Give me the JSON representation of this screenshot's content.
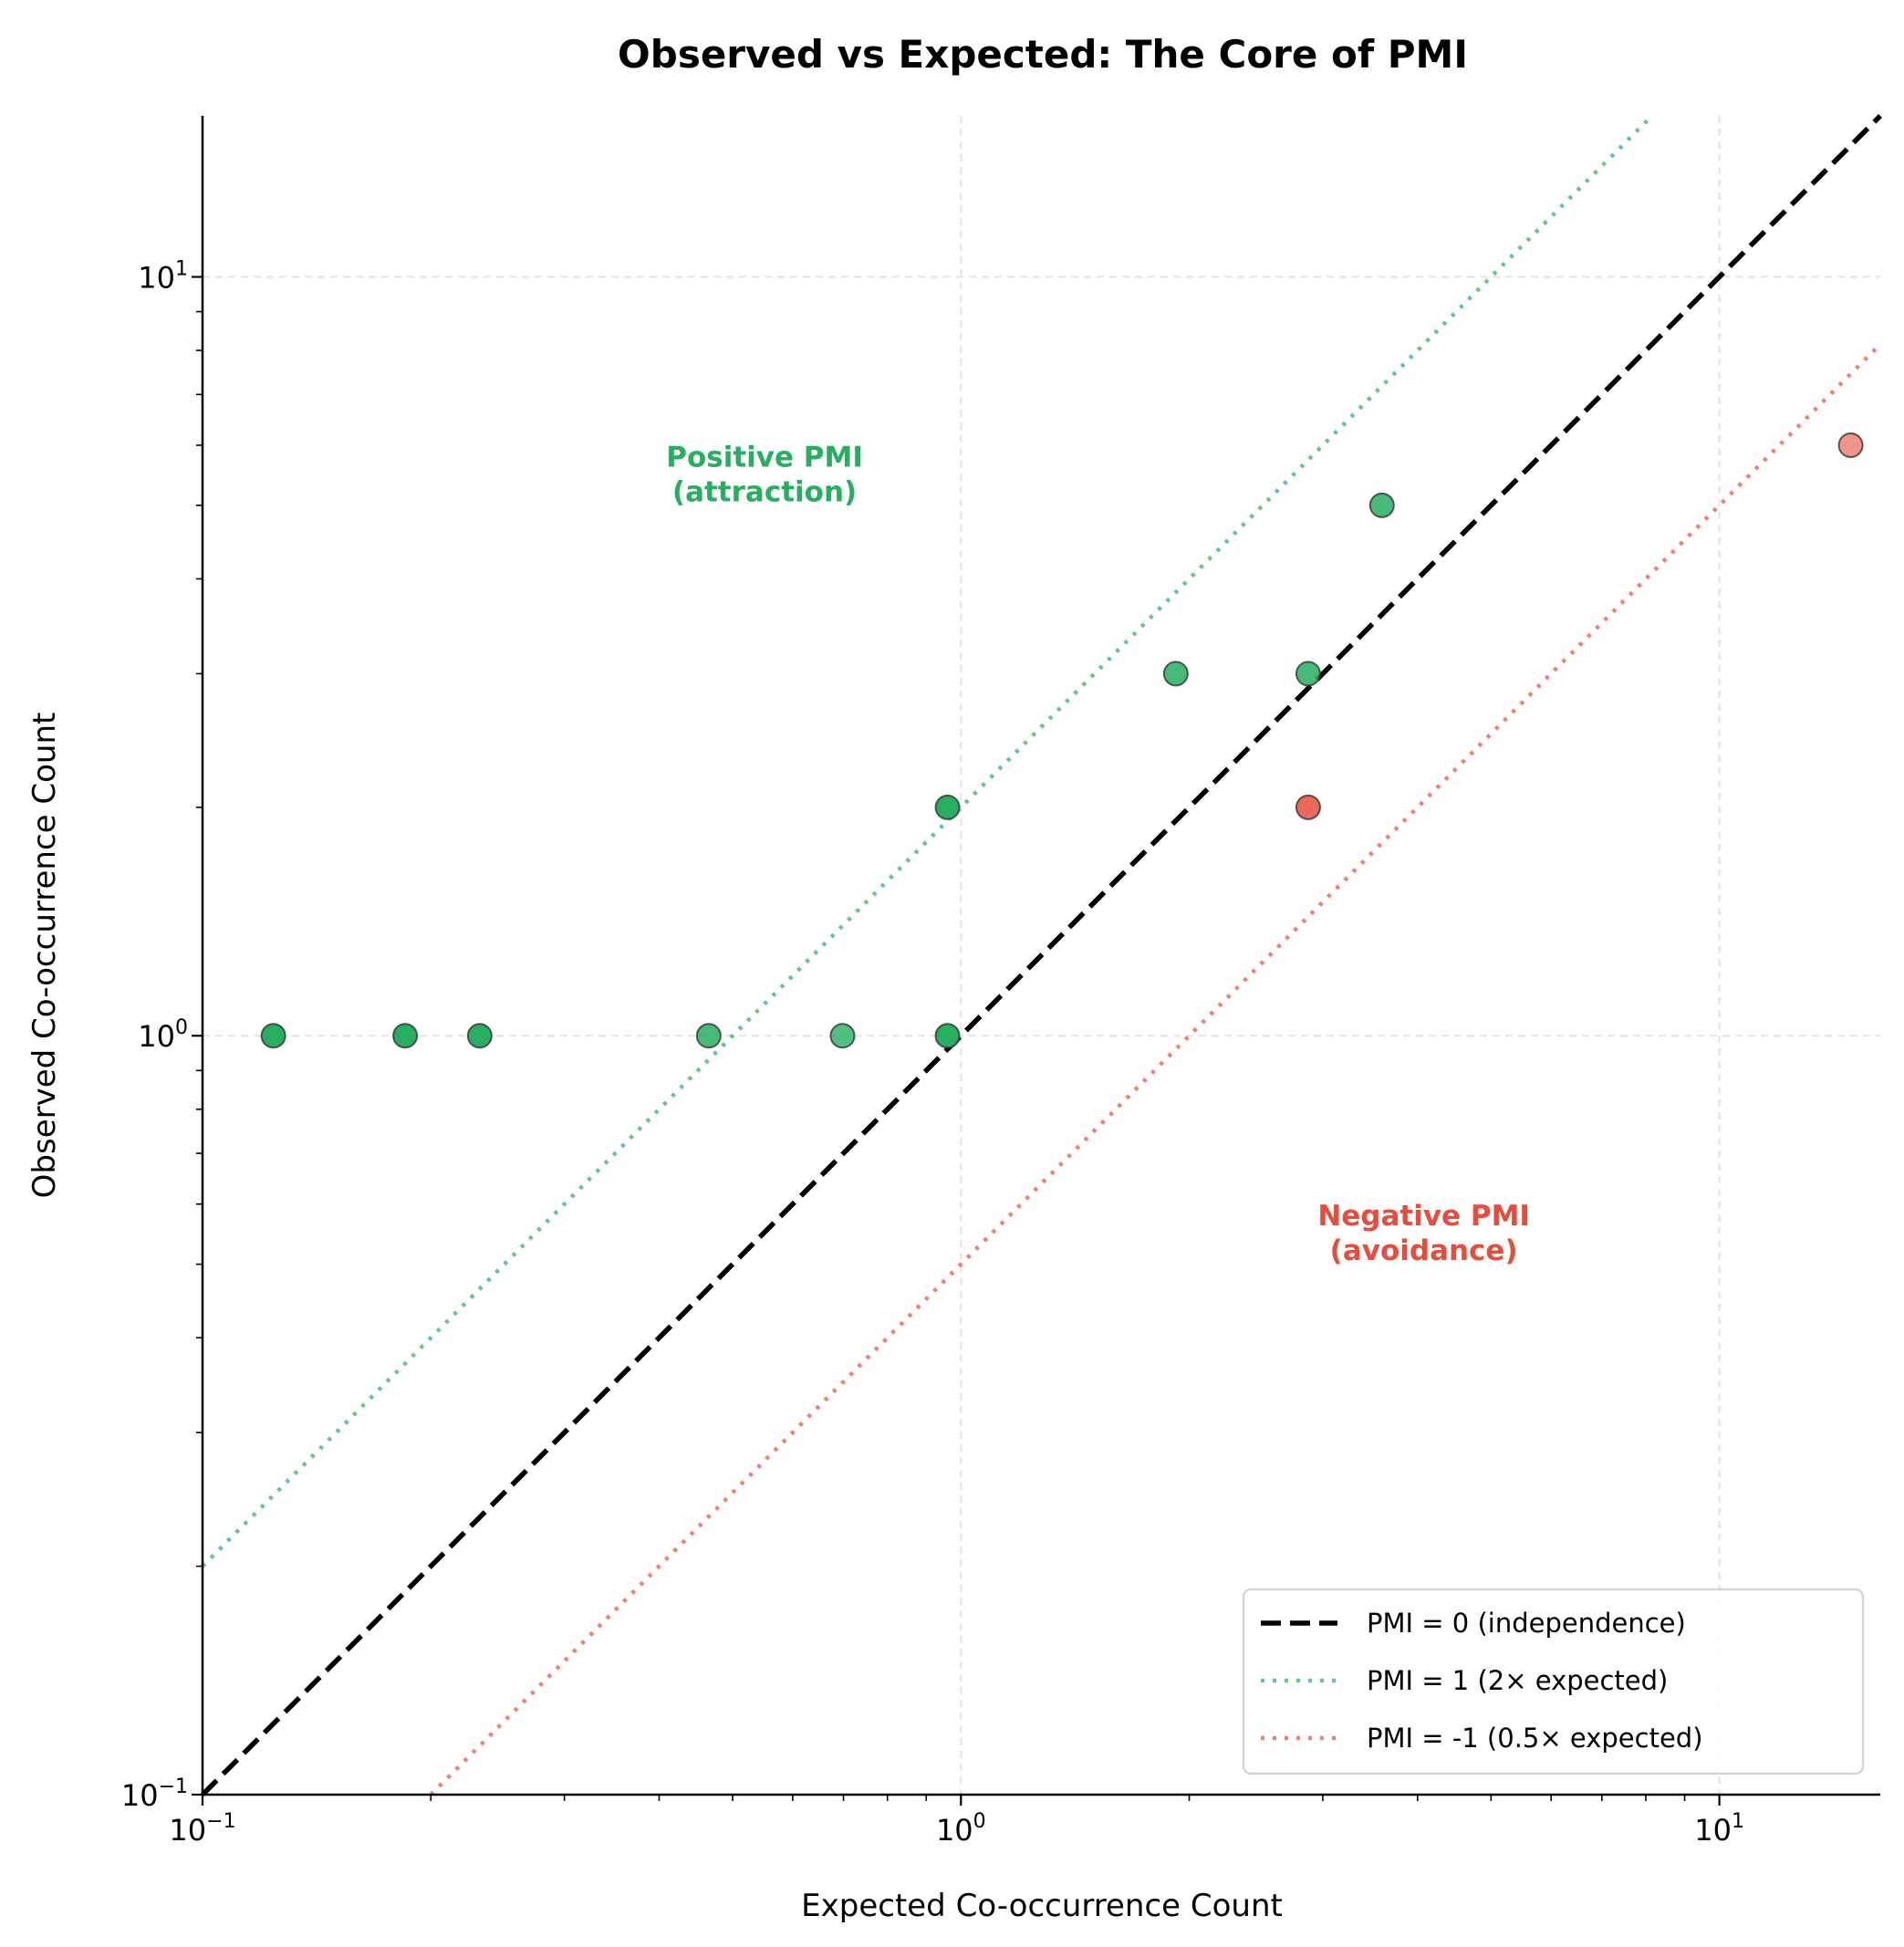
{
  "chart_data": {
    "type": "scatter",
    "title": "Observed vs Expected: The Core of PMI",
    "xlabel": "Expected Co-occurrence Count",
    "ylabel": "Observed Co-occurrence Count",
    "xscale": "log",
    "yscale": "log",
    "xlim": [
      0.1,
      16.3
    ],
    "ylim": [
      0.1,
      16.3
    ],
    "grid": true,
    "x_ticks": [
      {
        "base": "10",
        "exp": "−1",
        "value": 0.1
      },
      {
        "base": "10",
        "exp": "0",
        "value": 1
      },
      {
        "base": "10",
        "exp": "1",
        "value": 10
      }
    ],
    "y_ticks": [
      {
        "base": "10",
        "exp": "−1",
        "value": 0.1
      },
      {
        "base": "10",
        "exp": "0",
        "value": 1
      },
      {
        "base": "10",
        "exp": "1",
        "value": 10
      }
    ],
    "points": [
      {
        "x": 0.124,
        "y": 1,
        "color": "#27ae60",
        "opacity": 1.0
      },
      {
        "x": 0.185,
        "y": 1,
        "color": "#27ae60",
        "opacity": 1.0
      },
      {
        "x": 0.232,
        "y": 1,
        "color": "#27ae60",
        "opacity": 1.0
      },
      {
        "x": 0.465,
        "y": 1,
        "color": "#27ae60",
        "opacity": 0.85
      },
      {
        "x": 0.698,
        "y": 1,
        "color": "#27ae60",
        "opacity": 0.8
      },
      {
        "x": 0.96,
        "y": 1,
        "color": "#27ae60",
        "opacity": 1.0
      },
      {
        "x": 0.96,
        "y": 2,
        "color": "#27ae60",
        "opacity": 1.0
      },
      {
        "x": 1.92,
        "y": 3,
        "color": "#27ae60",
        "opacity": 0.85
      },
      {
        "x": 2.87,
        "y": 3,
        "color": "#27ae60",
        "opacity": 0.85
      },
      {
        "x": 3.59,
        "y": 5,
        "color": "#27ae60",
        "opacity": 0.85
      },
      {
        "x": 2.87,
        "y": 2,
        "color": "#e74c3c",
        "opacity": 0.85
      },
      {
        "x": 14.9,
        "y": 6,
        "color": "#e74c3c",
        "opacity": 0.6
      }
    ],
    "reference_lines": [
      {
        "label": "PMI = 0 (independence)",
        "factor": 1,
        "color": "#000000",
        "style": "dashed"
      },
      {
        "label": "PMI = 1 (2× expected)",
        "factor": 2,
        "color": "#27ae60",
        "style": "dotted"
      },
      {
        "label": "PMI = -1 (0.5× expected)",
        "factor": 0.5,
        "color": "#e74c3c",
        "style": "dotted"
      }
    ],
    "annotations": [
      {
        "lines": [
          "Positive PMI",
          "(attraction)"
        ],
        "x": 0.5,
        "y": 5.5,
        "color": "#27ae60"
      },
      {
        "lines": [
          "Negative PMI",
          "(avoidance)"
        ],
        "x": 3.7,
        "y": 0.55,
        "color": "#e74c3c"
      }
    ],
    "legend_placement": "lower-right"
  }
}
